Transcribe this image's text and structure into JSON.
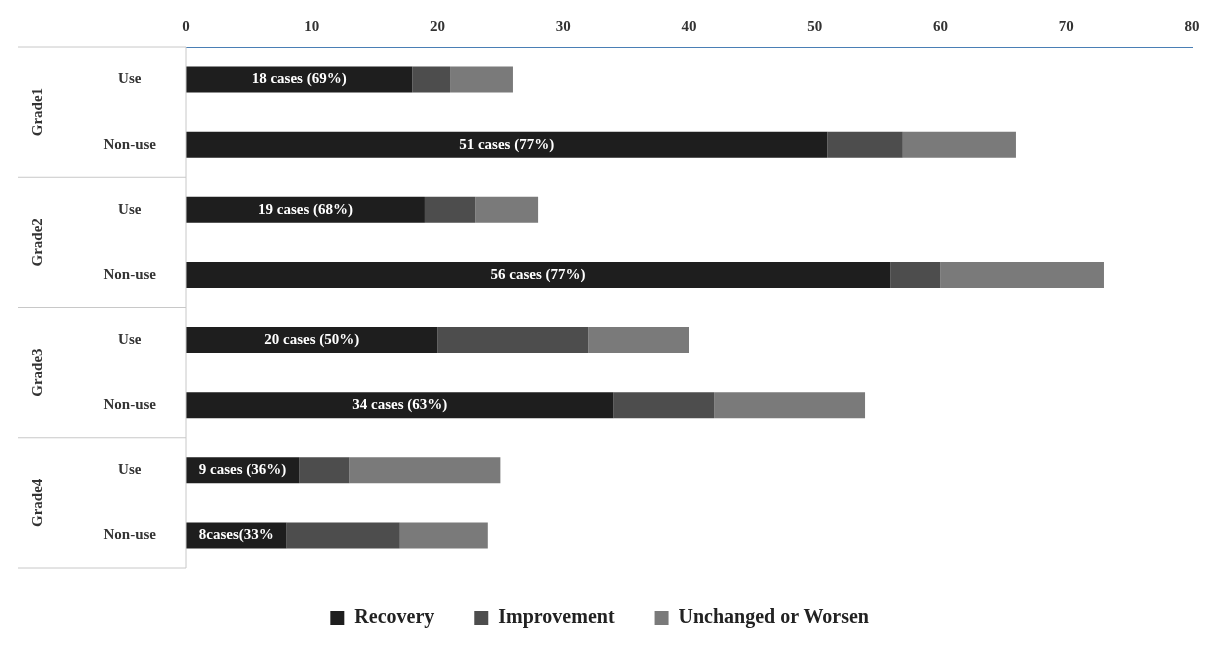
{
  "chart_data": {
    "type": "bar",
    "orientation": "horizontal",
    "stacked": true,
    "categories": [
      "Use",
      "Non-use",
      "Use",
      "Non-use",
      "Use",
      "Non-use",
      "Use",
      "Non-use"
    ],
    "annotations": [
      "Grade1",
      "Grade2",
      "Grade3",
      "Grade4"
    ],
    "series": [
      {
        "name": "Recovery",
        "color": "#1e1e1e",
        "values": [
          18,
          51,
          19,
          56,
          20,
          34,
          9,
          8
        ],
        "value_labels": [
          "18 cases (69%)",
          "51 cases (77%)",
          "19 cases (68%)",
          "56 cases (77%)",
          "20 cases (50%)",
          "34 cases (63%)",
          "9 cases (36%)",
          "8cases(33%"
        ]
      },
      {
        "name": "Improvement",
        "color": "#4d4d4d",
        "values": [
          3,
          6,
          4,
          4,
          12,
          8,
          4,
          9
        ]
      },
      {
        "name": "Unchanged or Worsen",
        "color": "#7a7a7a",
        "values": [
          5,
          9,
          5,
          13,
          8,
          12,
          12,
          7
        ]
      }
    ],
    "xlim": [
      0,
      80
    ],
    "xticks": [
      0,
      10,
      20,
      30,
      40,
      50,
      60,
      70,
      80
    ],
    "grid": false,
    "legend": "bottom"
  }
}
